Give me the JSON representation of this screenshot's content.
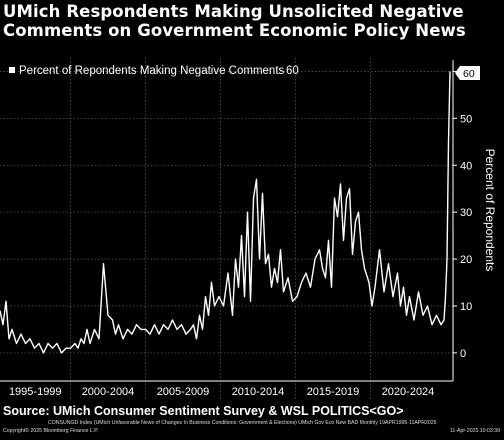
{
  "chart_data": {
    "type": "line",
    "title": "UMich Respondents Making Unsolicited Negative Comments on Government Economic Policy News",
    "ylabel": "Percent of Repondents",
    "legend": {
      "label": "Percent of Repondents Making Negative Comments",
      "last_value": "60",
      "position": "top-left"
    },
    "last_value_tag": "60",
    "x_categories": [
      "1995-1999",
      "2000-2004",
      "2005-2009",
      "2010-2014",
      "2015-2019",
      "2020-2024"
    ],
    "xlim": [
      1995.3,
      2025.5
    ],
    "ylim": [
      -6,
      65
    ],
    "yticks": [
      0,
      10,
      20,
      30,
      40,
      50,
      60
    ],
    "grid": true,
    "line_color": "#ffffff",
    "background": "#000000",
    "series": [
      {
        "name": "Percent of Repondents Making Negative Comments",
        "x": [
          1995.3,
          1995.5,
          1995.7,
          1995.9,
          1996.1,
          1996.4,
          1996.7,
          1997.0,
          1997.3,
          1997.6,
          1997.9,
          1998.2,
          1998.5,
          1998.8,
          1999.1,
          1999.4,
          1999.7,
          2000.0,
          2000.3,
          2000.5,
          2000.7,
          2000.9,
          2001.1,
          2001.3,
          2001.6,
          2001.9,
          2002.2,
          2002.5,
          2002.8,
          2003.0,
          2003.2,
          2003.5,
          2003.8,
          2004.1,
          2004.4,
          2004.7,
          2005.0,
          2005.3,
          2005.6,
          2005.9,
          2006.2,
          2006.5,
          2006.8,
          2007.1,
          2007.4,
          2007.7,
          2008.0,
          2008.2,
          2008.4,
          2008.6,
          2008.8,
          2009.0,
          2009.2,
          2009.4,
          2009.6,
          2009.9,
          2010.2,
          2010.5,
          2010.8,
          2011.0,
          2011.2,
          2011.4,
          2011.6,
          2011.8,
          2012.0,
          2012.2,
          2012.4,
          2012.6,
          2012.8,
          2013.0,
          2013.2,
          2013.4,
          2013.6,
          2013.8,
          2014.0,
          2014.2,
          2014.5,
          2014.8,
          2015.1,
          2015.4,
          2015.7,
          2016.0,
          2016.3,
          2016.6,
          2016.8,
          2017.0,
          2017.2,
          2017.4,
          2017.6,
          2017.8,
          2018.0,
          2018.2,
          2018.4,
          2018.6,
          2018.8,
          2019.0,
          2019.2,
          2019.4,
          2019.6,
          2019.9,
          2020.1,
          2020.3,
          2020.6,
          2020.9,
          2021.2,
          2021.5,
          2021.8,
          2022.0,
          2022.2,
          2022.4,
          2022.6,
          2022.9,
          2023.2,
          2023.5,
          2023.8,
          2024.1,
          2024.4,
          2024.7,
          2024.9,
          2025.0,
          2025.1,
          2025.2,
          2025.3
        ],
        "y": [
          9,
          6,
          11,
          3,
          5,
          2,
          4,
          2,
          3,
          1,
          2,
          0,
          2,
          1,
          2,
          0,
          1,
          1,
          2,
          1,
          3,
          2,
          5,
          2,
          5,
          3,
          19,
          8,
          7,
          4,
          6,
          3,
          5,
          4,
          6,
          5,
          5,
          4,
          6,
          4,
          6,
          5,
          7,
          5,
          6,
          4,
          5,
          6,
          3,
          8,
          5,
          12,
          8,
          15,
          10,
          12,
          10,
          17,
          8,
          20,
          14,
          25,
          12,
          30,
          11,
          33,
          37,
          20,
          34,
          19,
          21,
          14,
          18,
          15,
          22,
          13,
          16,
          11,
          12,
          15,
          17,
          14,
          20,
          22,
          18,
          16,
          24,
          14,
          33,
          29,
          36,
          24,
          33,
          35,
          21,
          28,
          30,
          22,
          18,
          15,
          10,
          14,
          22,
          13,
          19,
          12,
          17,
          10,
          14,
          8,
          12,
          7,
          13,
          8,
          10,
          6,
          8,
          6,
          7,
          12,
          20,
          45,
          60
        ]
      }
    ]
  },
  "source": "Source: UMich Consumer Sentiment Survey & WSL POLITICS<GO>",
  "index_note": "CONSUNGD Index (UMich Unfavorable News of Changes In Business Conditions: Government & Elections) UMich Gov Eco New BAD  Monthly 19APR1995-11APR2025",
  "copyright": "Copyright© 2025 Bloomberg Finance L.P.",
  "timestamp": "11-Apr-2025 10:03:39"
}
